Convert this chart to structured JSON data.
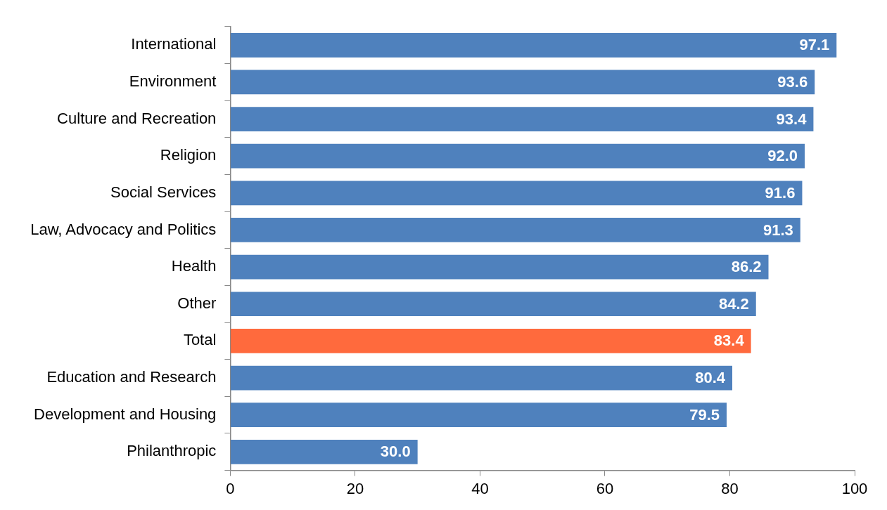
{
  "chart_data": {
    "type": "bar",
    "orientation": "horizontal",
    "categories": [
      "International",
      "Environment",
      "Culture and Recreation",
      "Religion",
      "Social Services",
      "Law, Advocacy and Politics",
      "Health",
      "Other",
      "Total",
      "Education and Research",
      "Development and Housing",
      "Philanthropic"
    ],
    "values": [
      97.1,
      93.6,
      93.4,
      92.0,
      91.6,
      91.3,
      86.2,
      84.2,
      83.4,
      80.4,
      79.5,
      30.0
    ],
    "value_labels": [
      "97.1",
      "93.6",
      "93.4",
      "92.0",
      "91.6",
      "91.3",
      "86.2",
      "84.2",
      "83.4",
      "80.4",
      "79.5",
      "30.0"
    ],
    "colors": [
      "#4f81bd",
      "#4f81bd",
      "#4f81bd",
      "#4f81bd",
      "#4f81bd",
      "#4f81bd",
      "#4f81bd",
      "#4f81bd",
      "#ff6a3d",
      "#4f81bd",
      "#4f81bd",
      "#4f81bd"
    ],
    "xlim": [
      0,
      100
    ],
    "xticks": [
      0,
      20,
      40,
      60,
      80,
      100
    ],
    "grid": false,
    "legend": false
  }
}
